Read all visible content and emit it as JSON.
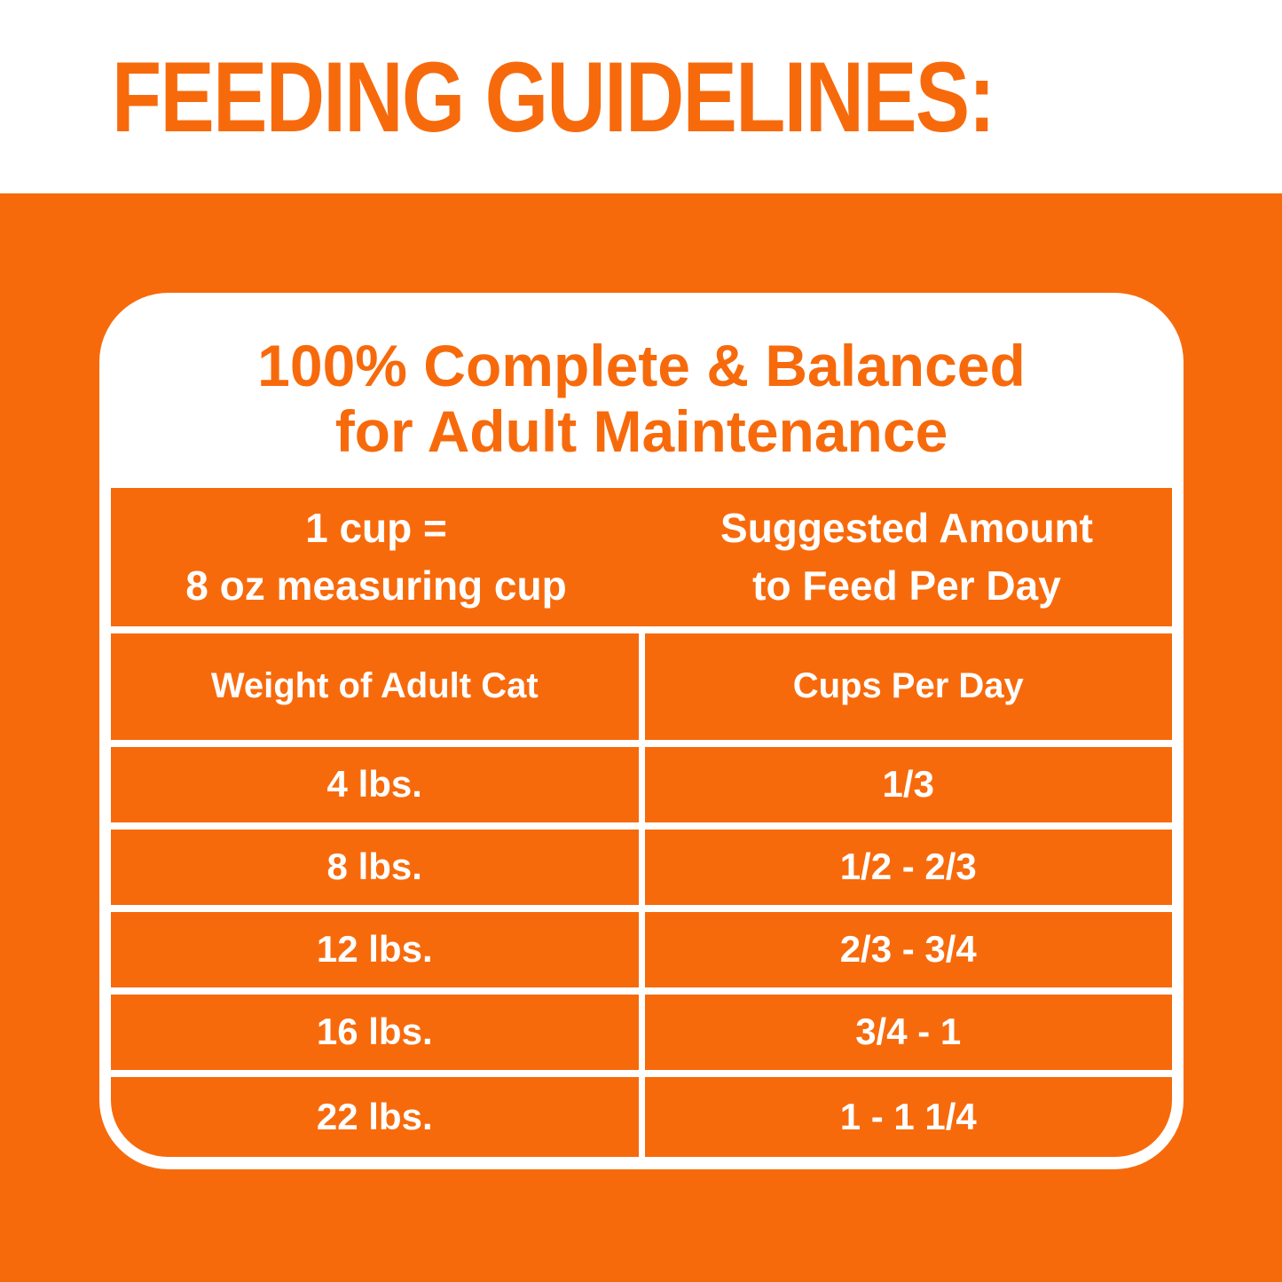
{
  "colors": {
    "orange": "#F76A0C",
    "white": "#FFFFFF"
  },
  "header": {
    "title": "FEEDING GUIDELINES:"
  },
  "card": {
    "title_line1": "100% Complete & Balanced",
    "title_line2": "for Adult Maintenance",
    "table": {
      "unit_note": {
        "left_line1": "1 cup =",
        "left_line2": "8 oz measuring cup",
        "right_line1": "Suggested Amount",
        "right_line2": "to Feed Per Day"
      },
      "column_headers": [
        "Weight of Adult Cat",
        "Cups Per Day"
      ],
      "rows": [
        {
          "weight": "4 lbs.",
          "cups": "1/3"
        },
        {
          "weight": "8 lbs.",
          "cups": "1/2 - 2/3"
        },
        {
          "weight": "12 lbs.",
          "cups": "2/3 - 3/4"
        },
        {
          "weight": "16 lbs.",
          "cups": "3/4 - 1"
        },
        {
          "weight": "22 lbs.",
          "cups": "1 - 1 1/4"
        }
      ]
    }
  },
  "chart_data": {
    "type": "table",
    "title": "FEEDING GUIDELINES: 100% Complete & Balanced for Adult Maintenance",
    "note": "1 cup = 8 oz measuring cup; Suggested Amount to Feed Per Day",
    "columns": [
      "Weight of Adult Cat",
      "Cups Per Day"
    ],
    "rows": [
      [
        "4 lbs.",
        "1/3"
      ],
      [
        "8 lbs.",
        "1/2 - 2/3"
      ],
      [
        "12 lbs.",
        "2/3 - 3/4"
      ],
      [
        "16 lbs.",
        "3/4 - 1"
      ],
      [
        "22 lbs.",
        "1 - 1 1/4"
      ]
    ]
  }
}
